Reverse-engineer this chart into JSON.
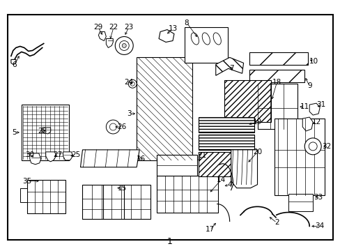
{
  "background_color": "#ffffff",
  "border_color": "#000000",
  "fig_width": 4.89,
  "fig_height": 3.6,
  "dpi": 100,
  "bottom_label": "1"
}
